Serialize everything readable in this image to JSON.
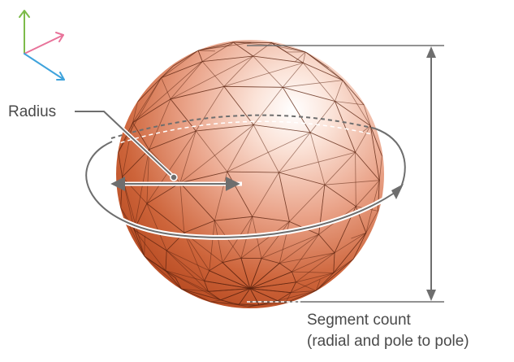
{
  "labels": {
    "radius": "Radius",
    "segment_line1": "Segment count",
    "segment_line2": "(radial and pole to pole)"
  },
  "colors": {
    "sphere_light": "#ffffff",
    "sphere_mid": "#eaa48a",
    "sphere_dark": "#b5481f",
    "mesh_line": "#5c2410",
    "annotation": "#6e6e6e",
    "axis_up": "#7dbb4a",
    "axis_right": "#e8739a",
    "axis_forward": "#3fa3dc"
  },
  "icons": {
    "axes": "xyz-axes-icon"
  }
}
